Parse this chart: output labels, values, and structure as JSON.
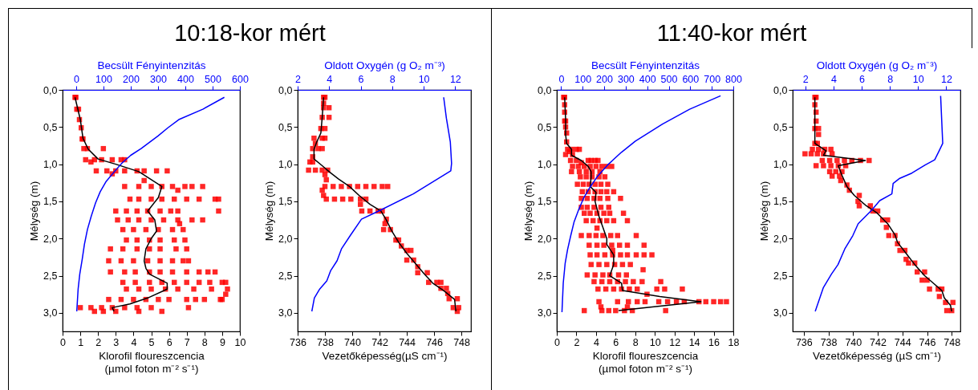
{
  "chart_data": [
    {
      "type": "scatter",
      "title": "10:18-kor mért",
      "xlabel": "Klorofil floureszcencia\n(µmol foton m⁻² s⁻¹)",
      "ylabel": "Mélység (m)",
      "x2label": "Becsült Fényintenzitás",
      "xlim": [
        0,
        10
      ],
      "xticks": [
        0,
        1,
        2,
        3,
        4,
        5,
        6,
        7,
        8,
        9,
        10
      ],
      "x2lim": [
        -50,
        600
      ],
      "x2ticks": [
        0,
        100,
        200,
        300,
        400,
        500,
        600
      ],
      "ylim": [
        3.25,
        0
      ],
      "yticks": [
        {
          "value": 0,
          "label": "0,0"
        },
        {
          "value": 0.5,
          "label": "0,5"
        },
        {
          "value": 1,
          "label": "1,0"
        },
        {
          "value": 1.5,
          "label": "1,5"
        },
        {
          "value": 2,
          "label": "2,0"
        },
        {
          "value": 2.5,
          "label": "2,5"
        },
        {
          "value": 3,
          "label": "3,0"
        }
      ],
      "series": [
        {
          "type": "scatter",
          "marker": "square",
          "color": "#ff0000",
          "x": [
            0.7,
            0.75,
            0.8,
            0.9,
            0.95,
            1.05,
            1.1,
            1.15,
            1.2,
            1.4,
            2.3,
            1.3,
            1.8,
            2.2,
            2.8,
            3.3,
            3.5,
            1.6,
            1.9,
            2.5,
            3.0,
            3.5,
            4.2,
            4.6,
            5.3,
            5.9,
            2.8,
            4.6,
            3.5,
            4.3,
            5.0,
            5.6,
            6.2,
            6.9,
            7.3,
            7.9,
            6.5,
            3.8,
            4.3,
            5.0,
            5.6,
            6.3,
            7.0,
            7.7,
            8.6,
            8.8,
            3.0,
            3.6,
            4.2,
            4.8,
            5.5,
            6.1,
            6.5,
            8.8,
            3.1,
            3.7,
            4.3,
            5.0,
            5.7,
            6.5,
            7.3,
            7.9,
            6.6,
            3.4,
            4.0,
            4.7,
            5.4,
            6.2,
            6.8,
            3.6,
            4.2,
            4.9,
            5.5,
            6.3,
            6.9,
            2.7,
            3.4,
            4.2,
            4.9,
            5.5,
            6.4,
            7.0,
            2.6,
            3.3,
            4.0,
            4.8,
            5.5,
            6.2,
            6.8,
            7.1,
            2.7,
            3.5,
            4.1,
            4.9,
            5.5,
            6.2,
            7.0,
            7.7,
            8.2,
            8.6,
            3.4,
            4.1,
            4.9,
            5.6,
            6.3,
            7.0,
            7.7,
            8.3,
            9.0,
            9.2,
            3.6,
            4.3,
            5.0,
            5.8,
            6.5,
            7.4,
            8.4,
            9.3,
            9.2,
            2.6,
            3.3,
            4.0,
            4.7,
            5.4,
            6.0,
            7.0,
            7.5,
            8.0,
            8.9,
            9.0,
            1.0,
            1.6,
            2.2,
            2.8,
            3.5,
            4.2,
            5.0,
            7.1,
            1.8,
            2.3,
            3.0,
            4.3,
            5.6
          ],
          "values": [
            0.1,
            0.1,
            0.26,
            0.26,
            0.4,
            0.51,
            0.66,
            0.66,
            0.79,
            0.79,
            0.79,
            0.94,
            0.94,
            0.94,
            0.94,
            0.94,
            0.94,
            0.97,
            1.09,
            1.09,
            1.09,
            1.09,
            1.09,
            1.09,
            1.09,
            1.09,
            1.13,
            1.22,
            1.3,
            1.3,
            1.3,
            1.3,
            1.3,
            1.3,
            1.3,
            1.3,
            1.35,
            1.47,
            1.47,
            1.47,
            1.47,
            1.47,
            1.47,
            1.47,
            1.47,
            1.47,
            1.63,
            1.63,
            1.63,
            1.63,
            1.63,
            1.63,
            1.63,
            1.63,
            1.75,
            1.75,
            1.75,
            1.75,
            1.75,
            1.75,
            1.75,
            1.75,
            1.8,
            1.88,
            1.88,
            1.88,
            1.88,
            1.88,
            1.88,
            2.02,
            2.02,
            2.02,
            2.02,
            2.02,
            2.02,
            2.14,
            2.14,
            2.14,
            2.14,
            2.14,
            2.14,
            2.14,
            2.3,
            2.3,
            2.3,
            2.3,
            2.3,
            2.3,
            2.3,
            2.3,
            2.45,
            2.45,
            2.45,
            2.45,
            2.45,
            2.45,
            2.45,
            2.45,
            2.45,
            2.45,
            2.59,
            2.59,
            2.59,
            2.59,
            2.59,
            2.59,
            2.59,
            2.59,
            2.59,
            2.59,
            2.68,
            2.68,
            2.68,
            2.68,
            2.68,
            2.68,
            2.68,
            2.68,
            2.75,
            2.82,
            2.82,
            2.82,
            2.82,
            2.82,
            2.82,
            2.82,
            2.82,
            2.82,
            2.82,
            2.82,
            2.93,
            2.93,
            2.93,
            2.93,
            2.93,
            2.93,
            2.93,
            2.93,
            2.98,
            2.98,
            2.98,
            2.98,
            2.98
          ]
        },
        {
          "type": "line",
          "marker": "none",
          "color": "#000000",
          "x": [
            0.7,
            1.0,
            1.15,
            1.45,
            2.0,
            3.0,
            4.3,
            5.6,
            5.4,
            4.8,
            5.2,
            5.3,
            5.0,
            4.7,
            4.6,
            4.7,
            4.9,
            5.9,
            5.9,
            4.8,
            3.8,
            2.8,
            2.9
          ],
          "values": [
            0.1,
            0.4,
            0.65,
            0.8,
            0.93,
            1.0,
            1.1,
            1.3,
            1.45,
            1.63,
            1.75,
            1.9,
            2.0,
            2.14,
            2.3,
            2.4,
            2.48,
            2.6,
            2.68,
            2.8,
            2.88,
            2.93,
            2.98
          ]
        },
        {
          "type": "line",
          "marker": "none",
          "axis": "x2",
          "color": "#0000ff",
          "x": [
            543,
            464,
            376,
            336,
            300,
            238,
            200,
            169,
            140,
            110,
            88,
            71,
            55,
            41,
            30,
            22,
            13,
            7,
            2
          ],
          "values": [
            0.1,
            0.26,
            0.4,
            0.51,
            0.62,
            0.79,
            0.88,
            0.98,
            1.1,
            1.23,
            1.37,
            1.52,
            1.7,
            1.88,
            2.08,
            2.28,
            2.48,
            2.68,
            2.98
          ]
        }
      ]
    },
    {
      "type": "scatter",
      "xlabel": "Vezetőképesség(µS cm⁻¹)",
      "ylabel": "Mélység (m)",
      "x2label": "Oldott Oxygén (g O₂ m⁻³)",
      "xlim": [
        736,
        748.7
      ],
      "xticks": [
        736,
        738,
        740,
        742,
        744,
        746,
        748
      ],
      "x2lim": [
        2,
        13
      ],
      "x2ticks": [
        2,
        4,
        6,
        8,
        10,
        12
      ],
      "ylim": [
        3.25,
        0
      ],
      "yticks": [
        {
          "value": 0,
          "label": "0,0"
        },
        {
          "value": 0.5,
          "label": "0,5"
        },
        {
          "value": 1,
          "label": "1,0"
        },
        {
          "value": 1.5,
          "label": "1,5"
        },
        {
          "value": 2,
          "label": "2,0"
        },
        {
          "value": 2.5,
          "label": "2,5"
        },
        {
          "value": 3,
          "label": "3,0"
        }
      ],
      "series": [
        {
          "type": "scatter",
          "marker": "square",
          "color": "#ff0000",
          "x": [
            737.9,
            738.0,
            737.9,
            737.9,
            738.3,
            737.8,
            738.3,
            737.7,
            738.0,
            737.2,
            737.8,
            738.0,
            737.3,
            737.1,
            737.5,
            737.8,
            737.1,
            736.9,
            737.1,
            736.8,
            737.3,
            737.8,
            738.2,
            738.0,
            738.1,
            738.0,
            738.6,
            739.2,
            739.8,
            740.4,
            741.0,
            741.6,
            742.2,
            742.6,
            737.8,
            737.9,
            738.1,
            738.7,
            739.3,
            739.9,
            740.6,
            741.0,
            740.6,
            740.7,
            741.3,
            741.9,
            742.2,
            742.5,
            742.4,
            742.3,
            742.8,
            743.2,
            743.4,
            743.6,
            744.0,
            744.3,
            744.0,
            744.5,
            744.8,
            744.8,
            745.5,
            745.6,
            746.2,
            746.5,
            746.5,
            746.9,
            747.0,
            747.1,
            747.7,
            747.4,
            747.8,
            747.7
          ],
          "values": [
            0.1,
            0.1,
            0.18,
            0.24,
            0.24,
            0.37,
            0.37,
            0.52,
            0.52,
            0.65,
            0.65,
            0.65,
            0.72,
            0.79,
            0.79,
            0.79,
            0.9,
            0.97,
            0.97,
            1.08,
            1.08,
            1.08,
            1.08,
            1.14,
            1.21,
            1.3,
            1.3,
            1.3,
            1.3,
            1.3,
            1.3,
            1.3,
            1.3,
            1.3,
            1.35,
            1.42,
            1.47,
            1.47,
            1.47,
            1.47,
            1.47,
            1.47,
            1.54,
            1.63,
            1.63,
            1.63,
            1.63,
            1.74,
            1.8,
            1.88,
            1.88,
            2.02,
            2.02,
            2.1,
            2.16,
            2.16,
            2.29,
            2.29,
            2.38,
            2.46,
            2.46,
            2.59,
            2.59,
            2.59,
            2.67,
            2.67,
            2.74,
            2.81,
            2.81,
            2.93,
            2.93,
            2.98
          ]
        },
        {
          "type": "line",
          "marker": "none",
          "color": "#000000",
          "x": [
            737.9,
            737.8,
            737.7,
            737.4,
            737.2,
            737.2,
            737.8,
            738.3,
            739.0,
            739.8,
            740.5,
            741.3,
            742.1,
            742.5,
            742.9,
            743.4,
            744.0,
            744.7,
            745.3,
            745.9,
            746.7,
            747.5,
            747.6
          ],
          "values": [
            0.1,
            0.37,
            0.58,
            0.7,
            0.8,
            0.93,
            1.02,
            1.1,
            1.2,
            1.3,
            1.42,
            1.54,
            1.63,
            1.75,
            1.9,
            2.05,
            2.2,
            2.35,
            2.48,
            2.6,
            2.7,
            2.82,
            2.98
          ]
        },
        {
          "type": "line",
          "marker": "none",
          "axis": "x2",
          "color": "#0000ff",
          "x": [
            11.27,
            11.44,
            11.69,
            11.77,
            11.72,
            9.34,
            7.14,
            6.05,
            5.34,
            4.78,
            4.5,
            4.1,
            3.85,
            3.4,
            3.06,
            2.9
          ],
          "values": [
            0.1,
            0.38,
            0.7,
            0.99,
            1.09,
            1.4,
            1.63,
            1.74,
            1.96,
            2.14,
            2.3,
            2.43,
            2.57,
            2.68,
            2.8,
            2.98
          ]
        }
      ]
    },
    {
      "type": "scatter",
      "title": "11:40-kor mért",
      "xlabel": "Klorofil floureszcencia\n(µmol foton m⁻² s⁻¹)",
      "ylabel": "Mélység (m)",
      "x2label": "Becsült Fényintenzitás",
      "xlim": [
        0,
        18
      ],
      "xticks": [
        0,
        2,
        4,
        6,
        8,
        10,
        12,
        14,
        16,
        18
      ],
      "x2lim": [
        -20,
        800
      ],
      "x2ticks": [
        0,
        100,
        200,
        300,
        400,
        500,
        600,
        700,
        800
      ],
      "ylim": [
        3.25,
        0
      ],
      "yticks": [
        {
          "value": 0,
          "label": "0,0"
        },
        {
          "value": 0.5,
          "label": "0,5"
        },
        {
          "value": 1,
          "label": "1,0"
        },
        {
          "value": 1.5,
          "label": "1,5"
        },
        {
          "value": 2,
          "label": "2,0"
        },
        {
          "value": 2.5,
          "label": "2,5"
        },
        {
          "value": 3,
          "label": "3,0"
        }
      ],
      "series": [
        {
          "type": "scatter",
          "marker": "square",
          "color": "#ff0000",
          "x": [
            0.7,
            0.8,
            0.8,
            0.8,
            0.8,
            0.9,
            0.9,
            1.0,
            1.0,
            1.1,
            1.5,
            2.0,
            2.3,
            1.3,
            0.9,
            1.6,
            1.4,
            2.0,
            3.2,
            3.5,
            3.9,
            4.2,
            2.5,
            1.6,
            2.2,
            2.8,
            3.4,
            4.0,
            4.6,
            5.1,
            5.6,
            1.5,
            2.3,
            3.0,
            3.6,
            4.4,
            2.4,
            3.0,
            3.6,
            4.3,
            4.9,
            2.1,
            2.7,
            3.3,
            3.9,
            4.5,
            5.2,
            2.6,
            3.2,
            3.9,
            4.5,
            5.1,
            5.8,
            2.5,
            3.1,
            3.8,
            4.4,
            5.2,
            6.5,
            2.5,
            3.1,
            3.8,
            4.5,
            5.3,
            2.8,
            3.4,
            4.1,
            4.8,
            5.4,
            6.8,
            3.0,
            3.7,
            4.4,
            5.1,
            5.8,
            7.2,
            4.1,
            2.5,
            3.3,
            4.0,
            4.7,
            5.5,
            6.2,
            8.1,
            3.3,
            4.1,
            4.8,
            5.6,
            6.4,
            7.2,
            8.9,
            5.7,
            3.4,
            4.1,
            4.9,
            5.7,
            6.5,
            7.2,
            8.1,
            8.9,
            9.7,
            3.5,
            4.3,
            5.1,
            5.9,
            6.7,
            7.5,
            8.8,
            3.1,
            3.9,
            4.7,
            5.4,
            6.3,
            7.1,
            3.8,
            4.6,
            5.4,
            6.2,
            7.0,
            7.8,
            8.7,
            10.6,
            4.2,
            5.0,
            5.8,
            6.6,
            7.4,
            8.2,
            10.2,
            11.0,
            12.8,
            9.2,
            4.3,
            6.2,
            7.3,
            8.2,
            9.0,
            10.4,
            11.3,
            12.2,
            13.0,
            14.5,
            15.2,
            16.0,
            16.7,
            17.3,
            4.5,
            7.2,
            2.8,
            4.6,
            5.3,
            6.0,
            6.9,
            7.7,
            11.1
          ],
          "values": [
            0.1,
            0.1,
            0.2,
            0.3,
            0.42,
            0.42,
            0.5,
            0.58,
            0.7,
            0.8,
            0.8,
            0.8,
            0.8,
            0.83,
            0.87,
            0.87,
            0.95,
            0.95,
            0.95,
            0.95,
            0.95,
            0.95,
            0.98,
            1.03,
            1.03,
            1.03,
            1.03,
            1.03,
            1.03,
            1.03,
            1.03,
            1.1,
            1.1,
            1.1,
            1.1,
            1.1,
            1.17,
            1.17,
            1.17,
            1.17,
            1.17,
            1.27,
            1.27,
            1.27,
            1.27,
            1.27,
            1.27,
            1.37,
            1.37,
            1.37,
            1.37,
            1.37,
            1.37,
            1.46,
            1.46,
            1.46,
            1.46,
            1.46,
            1.46,
            1.58,
            1.58,
            1.58,
            1.58,
            1.58,
            1.66,
            1.66,
            1.66,
            1.66,
            1.66,
            1.66,
            1.76,
            1.76,
            1.76,
            1.76,
            1.76,
            1.76,
            1.86,
            1.96,
            1.96,
            1.96,
            1.96,
            1.96,
            1.96,
            1.96,
            2.09,
            2.09,
            2.09,
            2.09,
            2.09,
            2.09,
            2.09,
            2.16,
            2.22,
            2.22,
            2.22,
            2.22,
            2.22,
            2.22,
            2.22,
            2.22,
            2.22,
            2.35,
            2.35,
            2.35,
            2.35,
            2.35,
            2.35,
            2.42,
            2.49,
            2.49,
            2.49,
            2.49,
            2.49,
            2.49,
            2.58,
            2.58,
            2.58,
            2.58,
            2.58,
            2.58,
            2.58,
            2.58,
            2.68,
            2.68,
            2.68,
            2.68,
            2.68,
            2.68,
            2.68,
            2.68,
            2.68,
            2.75,
            2.85,
            2.85,
            2.85,
            2.85,
            2.85,
            2.85,
            2.85,
            2.85,
            2.85,
            2.85,
            2.85,
            2.85,
            2.85,
            2.85,
            2.92,
            2.92,
            2.97,
            2.97,
            2.97,
            2.97,
            2.97,
            2.97,
            2.97
          ]
        },
        {
          "type": "line",
          "marker": "none",
          "color": "#000000",
          "x": [
            0.8,
            0.9,
            0.9,
            1.0,
            1.5,
            1.5,
            2.5,
            3.2,
            3.5,
            3.5,
            3.4,
            4.0,
            3.9,
            4.3,
            4.7,
            5.1,
            5.1,
            5.8,
            5.8,
            5.4,
            6.6,
            6.7,
            10.5,
            14.7,
            10.5,
            6.3
          ],
          "values": [
            0.1,
            0.4,
            0.6,
            0.72,
            0.8,
            0.88,
            0.95,
            1.03,
            1.1,
            1.18,
            1.3,
            1.38,
            1.5,
            1.7,
            1.85,
            2.0,
            2.08,
            2.22,
            2.35,
            2.5,
            2.6,
            2.7,
            2.78,
            2.85,
            2.91,
            2.97
          ]
        },
        {
          "type": "line",
          "marker": "none",
          "axis": "x2",
          "color": "#0000ff",
          "x": [
            741,
            597,
            471,
            345,
            280,
            220,
            170,
            132,
            104,
            82,
            60,
            44,
            30,
            19,
            10,
            4
          ],
          "values": [
            0.08,
            0.26,
            0.46,
            0.69,
            0.84,
            1.0,
            1.16,
            1.32,
            1.46,
            1.61,
            1.78,
            1.97,
            2.15,
            2.33,
            2.6,
            2.99
          ]
        }
      ]
    },
    {
      "type": "scatter",
      "xlabel": "Vezetőképesség (µS cm⁻¹)",
      "ylabel": "Mélység (m)",
      "x2label": "Oldott Oxygén (g O₂ m⁻³)",
      "xlim": [
        735.1,
        748.7
      ],
      "xticks": [
        736,
        738,
        740,
        742,
        744,
        746,
        748
      ],
      "x2lim": [
        1.1,
        13
      ],
      "x2ticks": [
        2,
        4,
        6,
        8,
        10,
        12
      ],
      "ylim": [
        3.25,
        0
      ],
      "yticks": [
        {
          "value": 0,
          "label": "0,0"
        },
        {
          "value": 0.5,
          "label": "0,5"
        },
        {
          "value": 1,
          "label": "1,0"
        },
        {
          "value": 1.5,
          "label": "1,5"
        },
        {
          "value": 2,
          "label": "2,0"
        },
        {
          "value": 2.5,
          "label": "2,5"
        },
        {
          "value": 3,
          "label": "3,0"
        }
      ],
      "series": [
        {
          "type": "scatter",
          "marker": "square",
          "color": "#ff0000",
          "x": [
            736.9,
            737.0,
            736.9,
            737.0,
            737.0,
            736.9,
            737.2,
            737.2,
            736.9,
            737.1,
            736.7,
            737.2,
            737.7,
            738.2,
            736.1,
            736.6,
            737.1,
            737.6,
            738.3,
            737.5,
            738.1,
            738.7,
            739.3,
            739.9,
            740.6,
            741.3,
            737.0,
            737.6,
            738.2,
            738.8,
            739.4,
            738.1,
            738.6,
            739.1,
            738.3,
            738.9,
            739.0,
            739.5,
            739.7,
            740.5,
            740.4,
            740.5,
            741.4,
            741.6,
            742.0,
            742.4,
            742.8,
            742.7,
            742.9,
            743.4,
            743.6,
            743.8,
            744.2,
            744.3,
            744.5,
            745.0,
            745.2,
            745.8,
            745.6,
            746.0,
            746.2,
            746.9,
            747.2,
            747.0,
            747.5,
            748.1,
            747.6,
            748.0
          ],
          "values": [
            0.1,
            0.1,
            0.2,
            0.3,
            0.42,
            0.52,
            0.52,
            0.6,
            0.72,
            0.72,
            0.8,
            0.8,
            0.8,
            0.8,
            0.86,
            0.86,
            0.86,
            0.86,
            0.86,
            0.95,
            0.95,
            0.95,
            0.95,
            0.95,
            0.95,
            0.95,
            1.02,
            1.02,
            1.02,
            1.02,
            1.02,
            1.1,
            1.1,
            1.1,
            1.16,
            1.16,
            1.22,
            1.28,
            1.35,
            1.42,
            1.5,
            1.56,
            1.56,
            1.63,
            1.63,
            1.75,
            1.75,
            1.85,
            1.96,
            1.96,
            2.07,
            2.16,
            2.16,
            2.28,
            2.33,
            2.33,
            2.45,
            2.45,
            2.56,
            2.56,
            2.68,
            2.68,
            2.68,
            2.78,
            2.86,
            2.86,
            2.97,
            2.97
          ]
        },
        {
          "type": "line",
          "marker": "none",
          "color": "#000000",
          "x": [
            736.9,
            736.9,
            737.8,
            737.6,
            741.0,
            738.8,
            739.1,
            739.5,
            740.1,
            741.0,
            741.9,
            742.8,
            743.4,
            743.6,
            744.3,
            745.0,
            745.8,
            746.5,
            747.2,
            747.4,
            747.9,
            748.0
          ],
          "values": [
            0.1,
            0.72,
            0.82,
            0.88,
            0.95,
            1.02,
            1.15,
            1.3,
            1.42,
            1.55,
            1.65,
            1.8,
            1.95,
            2.05,
            2.2,
            2.35,
            2.5,
            2.6,
            2.7,
            2.8,
            2.9,
            2.98
          ]
        },
        {
          "type": "line",
          "marker": "none",
          "axis": "x2",
          "color": "#0000ff",
          "x": [
            11.6,
            11.75,
            11.47,
            11.18,
            10.5,
            9.56,
            8.7,
            8.23,
            8.14,
            7.28,
            6.7,
            5.75,
            5.37,
            4.8,
            4.32,
            3.85,
            3.28,
            2.7
          ],
          "values": [
            0.08,
            0.72,
            0.83,
            0.94,
            1.01,
            1.12,
            1.19,
            1.26,
            1.4,
            1.49,
            1.62,
            1.8,
            1.96,
            2.14,
            2.35,
            2.48,
            2.66,
            2.98
          ]
        }
      ]
    }
  ]
}
